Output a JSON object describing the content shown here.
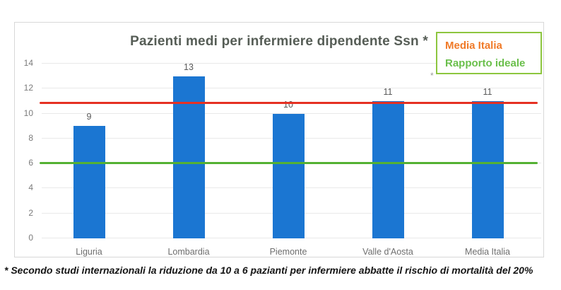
{
  "chart_panel": {
    "title": "Pazienti medi per infermiere dipendente Ssn *",
    "stray_mark": "*"
  },
  "legend": {
    "border_color": "#8dc63f",
    "items": [
      {
        "label": "Media Italia",
        "color": "#f07a28"
      },
      {
        "label": "Rapporto ideale",
        "color": "#6abf4b"
      }
    ]
  },
  "footnote": "* Secondo studi internazionali la riduzione da 10 a 6 pazianti per infermiere abbatte il rischio di mortalità del 20%",
  "chart_data": {
    "type": "bar",
    "title": "Pazienti medi per infermiere dipendente Ssn *",
    "categories": [
      "Liguria",
      "Lombardia",
      "Piemonte",
      "Valle d'Aosta",
      "Media Italia"
    ],
    "values": [
      9,
      13,
      10,
      11,
      11
    ],
    "bar_color": "#1b76d2",
    "value_label_color": "#595959",
    "xlabel": "",
    "ylabel": "",
    "ylim": [
      0,
      14
    ],
    "yticks": [
      0,
      2,
      4,
      6,
      8,
      10,
      12,
      14
    ],
    "grid": true,
    "gridline_color": "#e9e9e9",
    "legend_position": "top-right",
    "reference_lines": [
      {
        "name": "Media Italia",
        "value": 10.9,
        "color": "#e53123"
      },
      {
        "name": "Rapporto ideale",
        "value": 6.05,
        "color": "#54b133"
      }
    ]
  }
}
